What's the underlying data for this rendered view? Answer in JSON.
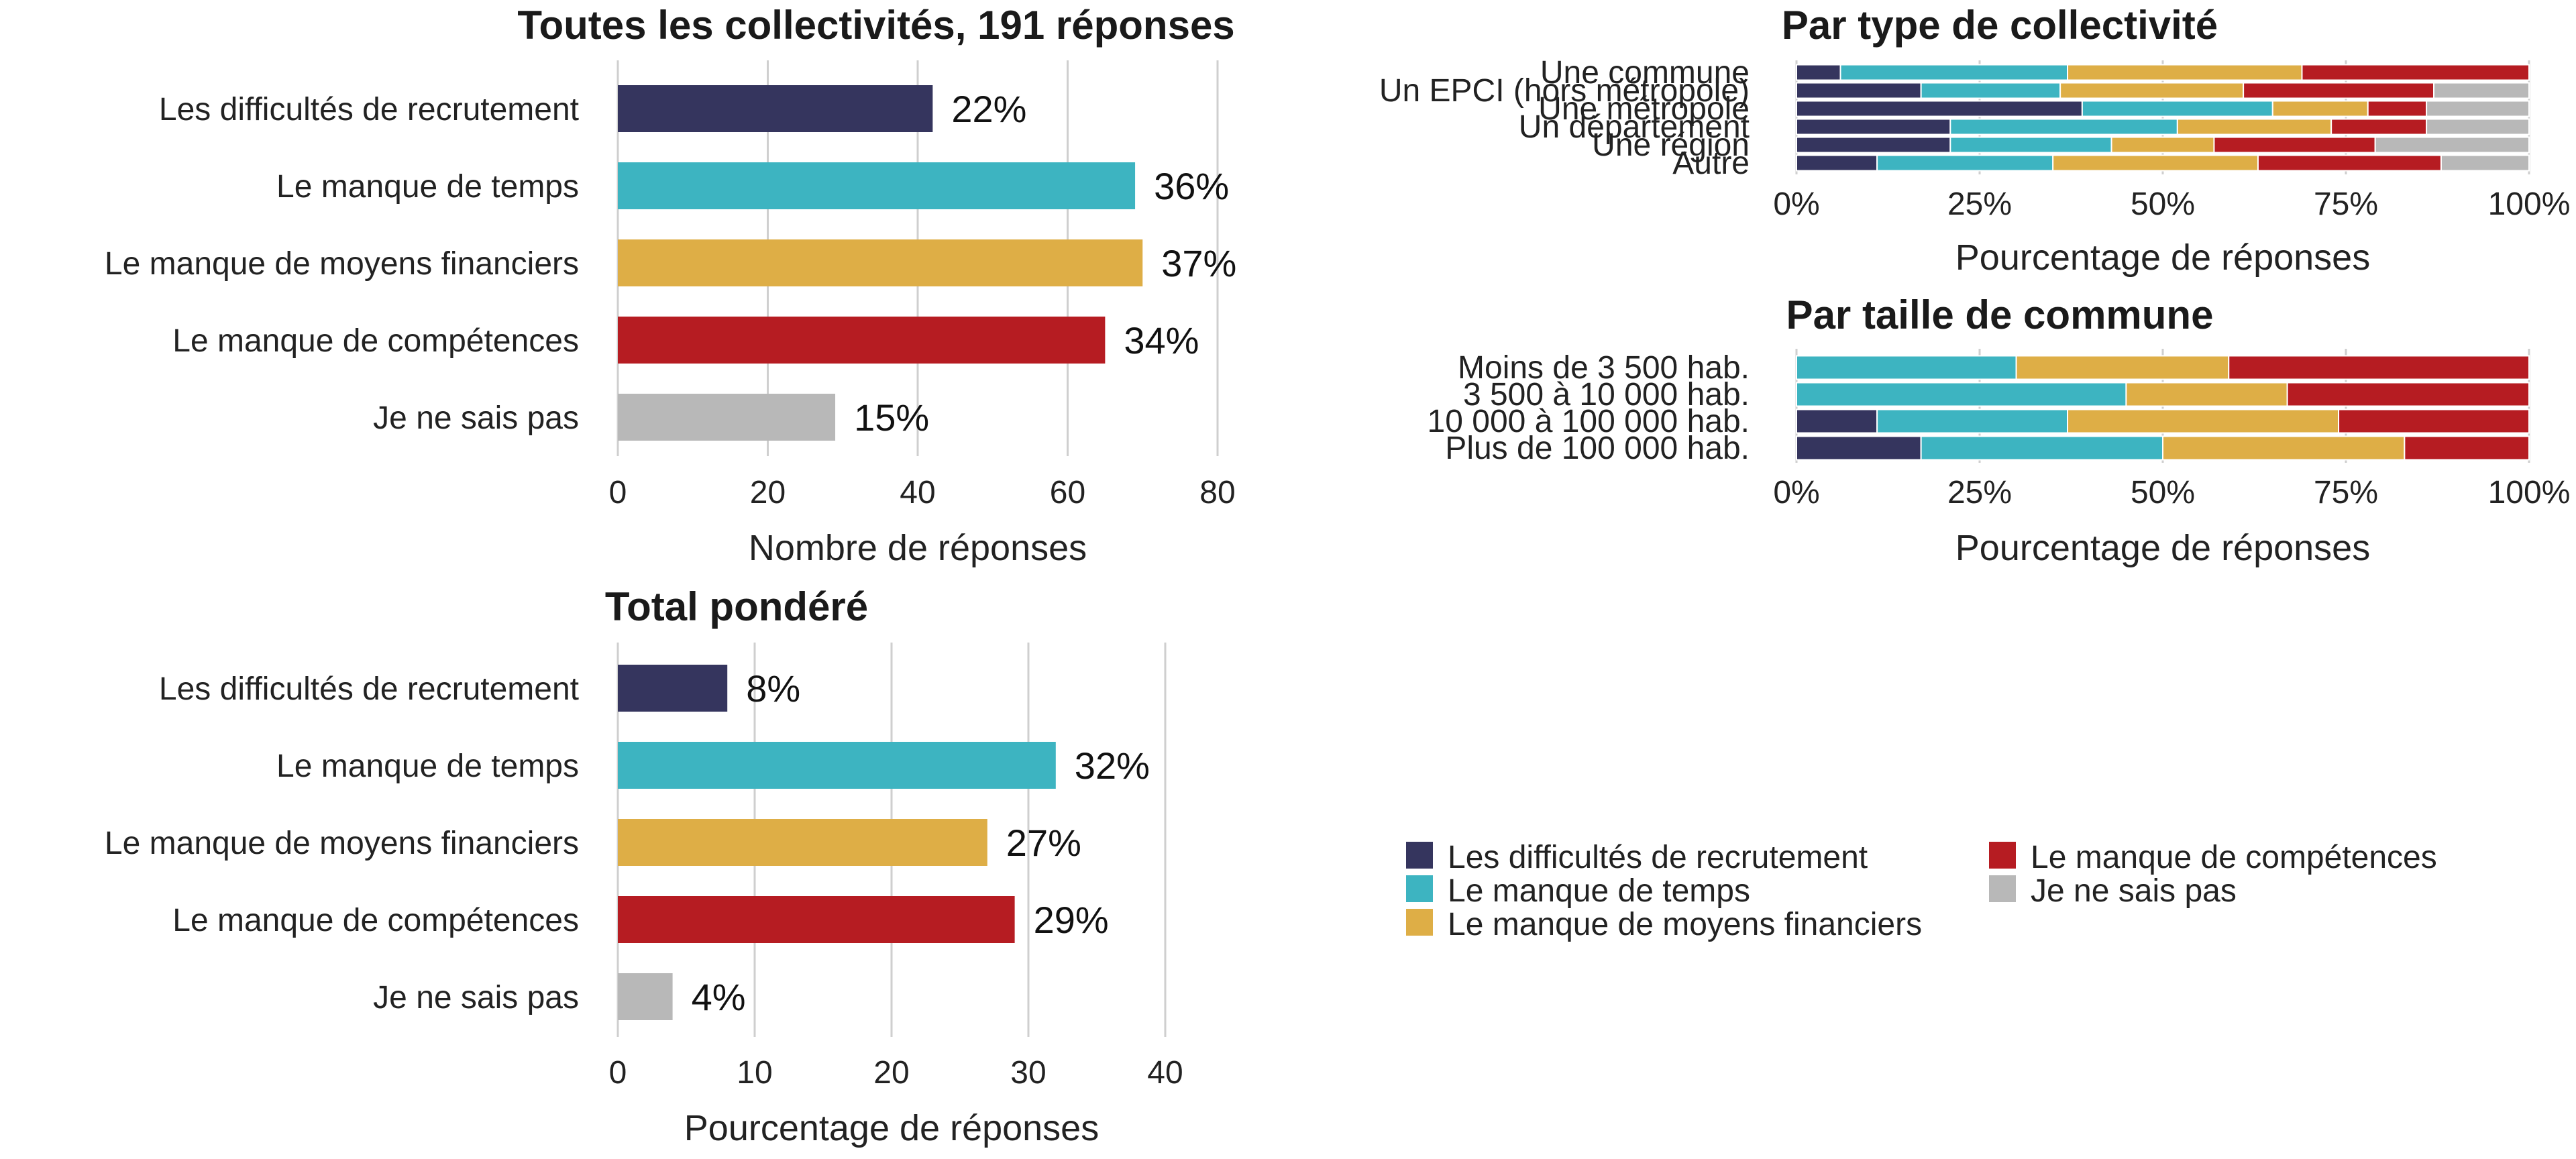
{
  "colors": {
    "Les difficultés de recrutement": "#35355e",
    "Le manque de temps": "#3db4c1",
    "Le manque de moyens financiers": "#deae46",
    "Le manque de compétences": "#b61c22",
    "Je ne sais pas": "#b8b8b8"
  },
  "legend": {
    "items": [
      "Les difficultés de recrutement",
      "Le manque de temps",
      "Le manque de moyens financiers",
      "Le manque de compétences",
      "Je ne sais pas"
    ],
    "placement": "center-right"
  },
  "chart_data": [
    {
      "id": "all",
      "type": "bar",
      "orientation": "horizontal",
      "title": "Toutes les collectivités, 191 réponses",
      "xlabel": "Nombre de réponses",
      "categories": [
        "Les difficultés de recrutement",
        "Le manque de temps",
        "Le manque de moyens financiers",
        "Le manque de compétences",
        "Je ne sais pas"
      ],
      "values": [
        42,
        69,
        70,
        65,
        29
      ],
      "labels": [
        "22%",
        "36%",
        "37%",
        "34%",
        "15%"
      ],
      "xlim": [
        0,
        80
      ],
      "xticks": [
        0,
        20,
        40,
        60,
        80
      ],
      "grid": true
    },
    {
      "id": "weighted",
      "type": "bar",
      "orientation": "horizontal",
      "title": "Total pondéré",
      "xlabel": "Pourcentage de réponses",
      "categories": [
        "Les difficultés de recrutement",
        "Le manque de temps",
        "Le manque de moyens financiers",
        "Le manque de compétences",
        "Je ne sais pas"
      ],
      "values": [
        8,
        32,
        27,
        29,
        4
      ],
      "labels": [
        "8%",
        "32%",
        "27%",
        "29%",
        "4%"
      ],
      "xlim": [
        0,
        40
      ],
      "xticks": [
        0,
        10,
        20,
        30,
        40
      ],
      "grid": true
    },
    {
      "id": "type",
      "type": "bar",
      "stacked": true,
      "orientation": "horizontal",
      "title": "Par type de collectivité",
      "xlabel": "Pourcentage de réponses",
      "categories": [
        "Une commune",
        "Un EPCI (hors métropole)",
        "Une métropole",
        "Un département",
        "Une région",
        "Autre"
      ],
      "series": [
        {
          "name": "Les difficultés de recrutement",
          "values": [
            6,
            17,
            39,
            21,
            21,
            11
          ]
        },
        {
          "name": "Le manque de temps",
          "values": [
            31,
            19,
            26,
            31,
            22,
            24
          ]
        },
        {
          "name": "Le manque de moyens financiers",
          "values": [
            32,
            25,
            13,
            21,
            14,
            28
          ]
        },
        {
          "name": "Le manque de compétences",
          "values": [
            31,
            26,
            8,
            13,
            22,
            25
          ]
        },
        {
          "name": "Je ne sais pas",
          "values": [
            0,
            13,
            14,
            14,
            21,
            12
          ]
        }
      ],
      "xlim": [
        0,
        100
      ],
      "xticks": [
        "0%",
        "25%",
        "50%",
        "75%",
        "100%"
      ],
      "grid": true
    },
    {
      "id": "size",
      "type": "bar",
      "stacked": true,
      "orientation": "horizontal",
      "title": "Par taille de commune",
      "xlabel": "Pourcentage de réponses",
      "categories": [
        "Moins de 3 500 hab.",
        "3 500 à 10 000 hab.",
        "10 000 à 100 000 hab.",
        "Plus de 100 000 hab."
      ],
      "series": [
        {
          "name": "Les difficultés de recrutement",
          "values": [
            0,
            0,
            11,
            17
          ]
        },
        {
          "name": "Le manque de temps",
          "values": [
            30,
            45,
            26,
            33
          ]
        },
        {
          "name": "Le manque de moyens financiers",
          "values": [
            29,
            22,
            37,
            33
          ]
        },
        {
          "name": "Le manque de compétences",
          "values": [
            41,
            33,
            26,
            17
          ]
        },
        {
          "name": "Je ne sais pas",
          "values": [
            0,
            0,
            0,
            0
          ]
        }
      ],
      "xlim": [
        0,
        100
      ],
      "xticks": [
        "0%",
        "25%",
        "50%",
        "75%",
        "100%"
      ],
      "grid": true
    }
  ]
}
